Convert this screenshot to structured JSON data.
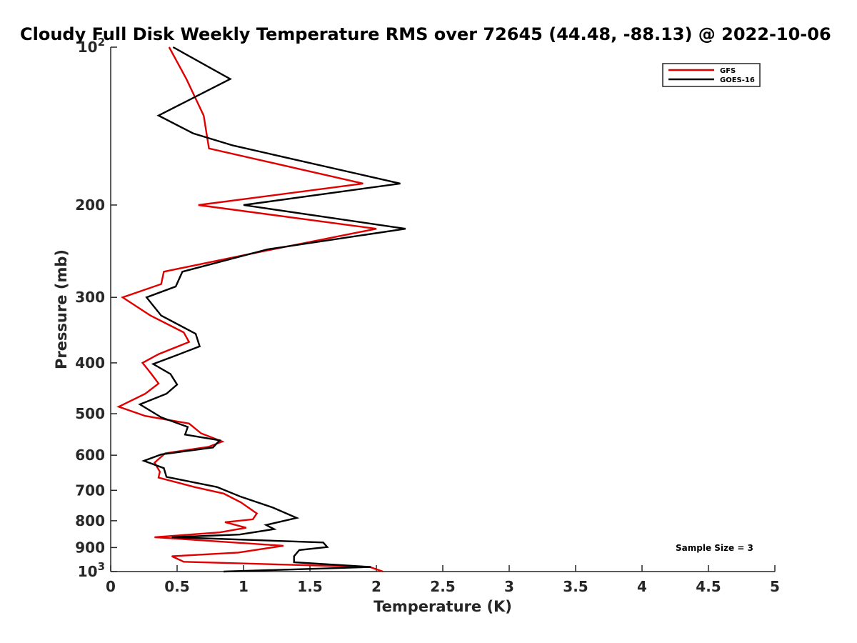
{
  "chart_data": {
    "type": "line",
    "title": "Cloudy Full Disk Weekly Temperature RMS over 72645 (44.48, -88.13) @ 2022-10-06",
    "xlabel": "Temperature (K)",
    "ylabel": "Pressure (mb)",
    "xlim": [
      0,
      5
    ],
    "ylim": [
      1000,
      100
    ],
    "y_scale": "log",
    "x_ticks": [
      "0",
      "0.5",
      "1",
      "1.5",
      "2",
      "2.5",
      "3",
      "3.5",
      "4",
      "4.5",
      "5"
    ],
    "x_tick_values": [
      0,
      0.5,
      1,
      1.5,
      2,
      2.5,
      3,
      3.5,
      4,
      4.5,
      5
    ],
    "y_ticks": [
      {
        "value": 100,
        "base": "10",
        "exp": "2"
      },
      {
        "value": 200,
        "label": "200"
      },
      {
        "value": 300,
        "label": "300"
      },
      {
        "value": 400,
        "label": "400"
      },
      {
        "value": 500,
        "label": "500"
      },
      {
        "value": 600,
        "label": "600"
      },
      {
        "value": 700,
        "label": "700"
      },
      {
        "value": 800,
        "label": "800"
      },
      {
        "value": 900,
        "label": "900"
      },
      {
        "value": 1000,
        "base": "10",
        "exp": "3"
      }
    ],
    "legend_position": "top-right",
    "annotation": "Sample Size = 3",
    "series": [
      {
        "name": "GFS",
        "color": "#e00000",
        "points": [
          {
            "t": 0.44,
            "p": 100
          },
          {
            "t": 0.57,
            "p": 115
          },
          {
            "t": 0.7,
            "p": 135
          },
          {
            "t": 0.74,
            "p": 156
          },
          {
            "t": 1.9,
            "p": 182
          },
          {
            "t": 0.66,
            "p": 200
          },
          {
            "t": 2.0,
            "p": 222
          },
          {
            "t": 1.15,
            "p": 245
          },
          {
            "t": 0.4,
            "p": 268
          },
          {
            "t": 0.38,
            "p": 283
          },
          {
            "t": 0.09,
            "p": 300
          },
          {
            "t": 0.3,
            "p": 325
          },
          {
            "t": 0.55,
            "p": 350
          },
          {
            "t": 0.59,
            "p": 365
          },
          {
            "t": 0.36,
            "p": 385
          },
          {
            "t": 0.24,
            "p": 400
          },
          {
            "t": 0.3,
            "p": 418
          },
          {
            "t": 0.36,
            "p": 438
          },
          {
            "t": 0.26,
            "p": 458
          },
          {
            "t": 0.06,
            "p": 485
          },
          {
            "t": 0.26,
            "p": 505
          },
          {
            "t": 0.59,
            "p": 522
          },
          {
            "t": 0.68,
            "p": 545
          },
          {
            "t": 0.84,
            "p": 565
          },
          {
            "t": 0.74,
            "p": 578
          },
          {
            "t": 0.41,
            "p": 595
          },
          {
            "t": 0.33,
            "p": 620
          },
          {
            "t": 0.37,
            "p": 645
          },
          {
            "t": 0.36,
            "p": 662
          },
          {
            "t": 0.63,
            "p": 690
          },
          {
            "t": 0.85,
            "p": 710
          },
          {
            "t": 0.98,
            "p": 738
          },
          {
            "t": 1.1,
            "p": 775
          },
          {
            "t": 1.07,
            "p": 795
          },
          {
            "t": 0.86,
            "p": 805
          },
          {
            "t": 1.02,
            "p": 825
          },
          {
            "t": 0.82,
            "p": 842
          },
          {
            "t": 0.33,
            "p": 860
          },
          {
            "t": 1.3,
            "p": 893
          },
          {
            "t": 0.96,
            "p": 920
          },
          {
            "t": 0.46,
            "p": 935
          },
          {
            "t": 0.55,
            "p": 958
          },
          {
            "t": 1.95,
            "p": 980
          },
          {
            "t": 2.05,
            "p": 1000
          }
        ]
      },
      {
        "name": "GOES-16",
        "color": "#000000",
        "points": [
          {
            "t": 0.47,
            "p": 100
          },
          {
            "t": 0.9,
            "p": 115
          },
          {
            "t": 0.36,
            "p": 135
          },
          {
            "t": 0.62,
            "p": 146
          },
          {
            "t": 0.92,
            "p": 154
          },
          {
            "t": 2.18,
            "p": 182
          },
          {
            "t": 1.0,
            "p": 200
          },
          {
            "t": 2.22,
            "p": 222
          },
          {
            "t": 1.18,
            "p": 243
          },
          {
            "t": 0.54,
            "p": 268
          },
          {
            "t": 0.49,
            "p": 286
          },
          {
            "t": 0.27,
            "p": 300
          },
          {
            "t": 0.38,
            "p": 325
          },
          {
            "t": 0.64,
            "p": 352
          },
          {
            "t": 0.67,
            "p": 372
          },
          {
            "t": 0.46,
            "p": 390
          },
          {
            "t": 0.32,
            "p": 402
          },
          {
            "t": 0.45,
            "p": 420
          },
          {
            "t": 0.5,
            "p": 440
          },
          {
            "t": 0.42,
            "p": 458
          },
          {
            "t": 0.22,
            "p": 480
          },
          {
            "t": 0.38,
            "p": 508
          },
          {
            "t": 0.58,
            "p": 530
          },
          {
            "t": 0.56,
            "p": 548
          },
          {
            "t": 0.82,
            "p": 562
          },
          {
            "t": 0.77,
            "p": 580
          },
          {
            "t": 0.38,
            "p": 598
          },
          {
            "t": 0.25,
            "p": 615
          },
          {
            "t": 0.4,
            "p": 635
          },
          {
            "t": 0.42,
            "p": 660
          },
          {
            "t": 0.8,
            "p": 690
          },
          {
            "t": 0.98,
            "p": 720
          },
          {
            "t": 1.22,
            "p": 755
          },
          {
            "t": 1.4,
            "p": 790
          },
          {
            "t": 1.17,
            "p": 815
          },
          {
            "t": 1.23,
            "p": 830
          },
          {
            "t": 0.97,
            "p": 850
          },
          {
            "t": 0.46,
            "p": 860
          },
          {
            "t": 1.6,
            "p": 880
          },
          {
            "t": 1.63,
            "p": 898
          },
          {
            "t": 1.42,
            "p": 910
          },
          {
            "t": 1.38,
            "p": 935
          },
          {
            "t": 1.38,
            "p": 960
          },
          {
            "t": 1.96,
            "p": 980
          },
          {
            "t": 0.85,
            "p": 1000
          }
        ]
      }
    ]
  }
}
